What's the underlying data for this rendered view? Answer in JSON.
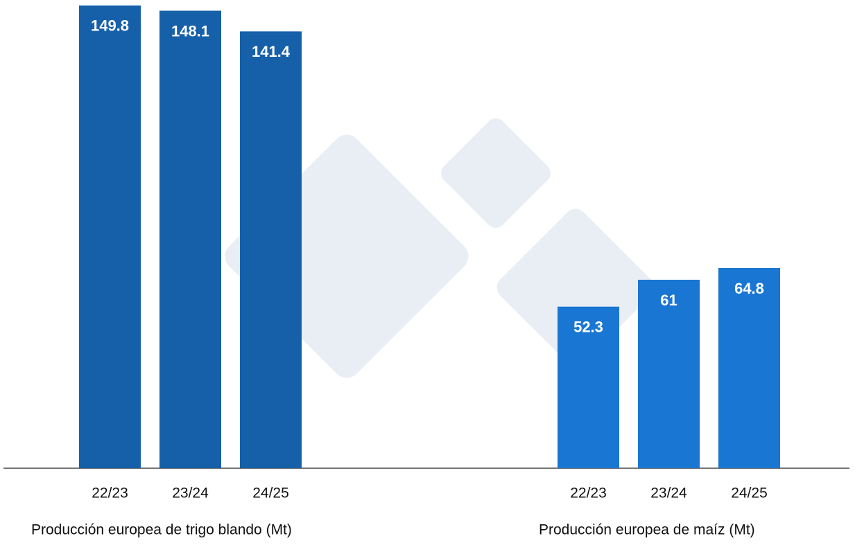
{
  "chart_data": [
    {
      "type": "bar",
      "title": "Producción europea de trigo blando (Mt)",
      "categories": [
        "22/23",
        "23/24",
        "24/25"
      ],
      "values": [
        149.8,
        148.1,
        141.4
      ],
      "color": "#1660aa",
      "ylim": [
        0,
        150
      ]
    },
    {
      "type": "bar",
      "title": "Producción europea de maíz (Mt)",
      "categories": [
        "22/23",
        "23/24",
        "24/25"
      ],
      "values": [
        52.3,
        61,
        64.8
      ],
      "color": "#1976d2",
      "ylim": [
        0,
        150
      ]
    }
  ]
}
